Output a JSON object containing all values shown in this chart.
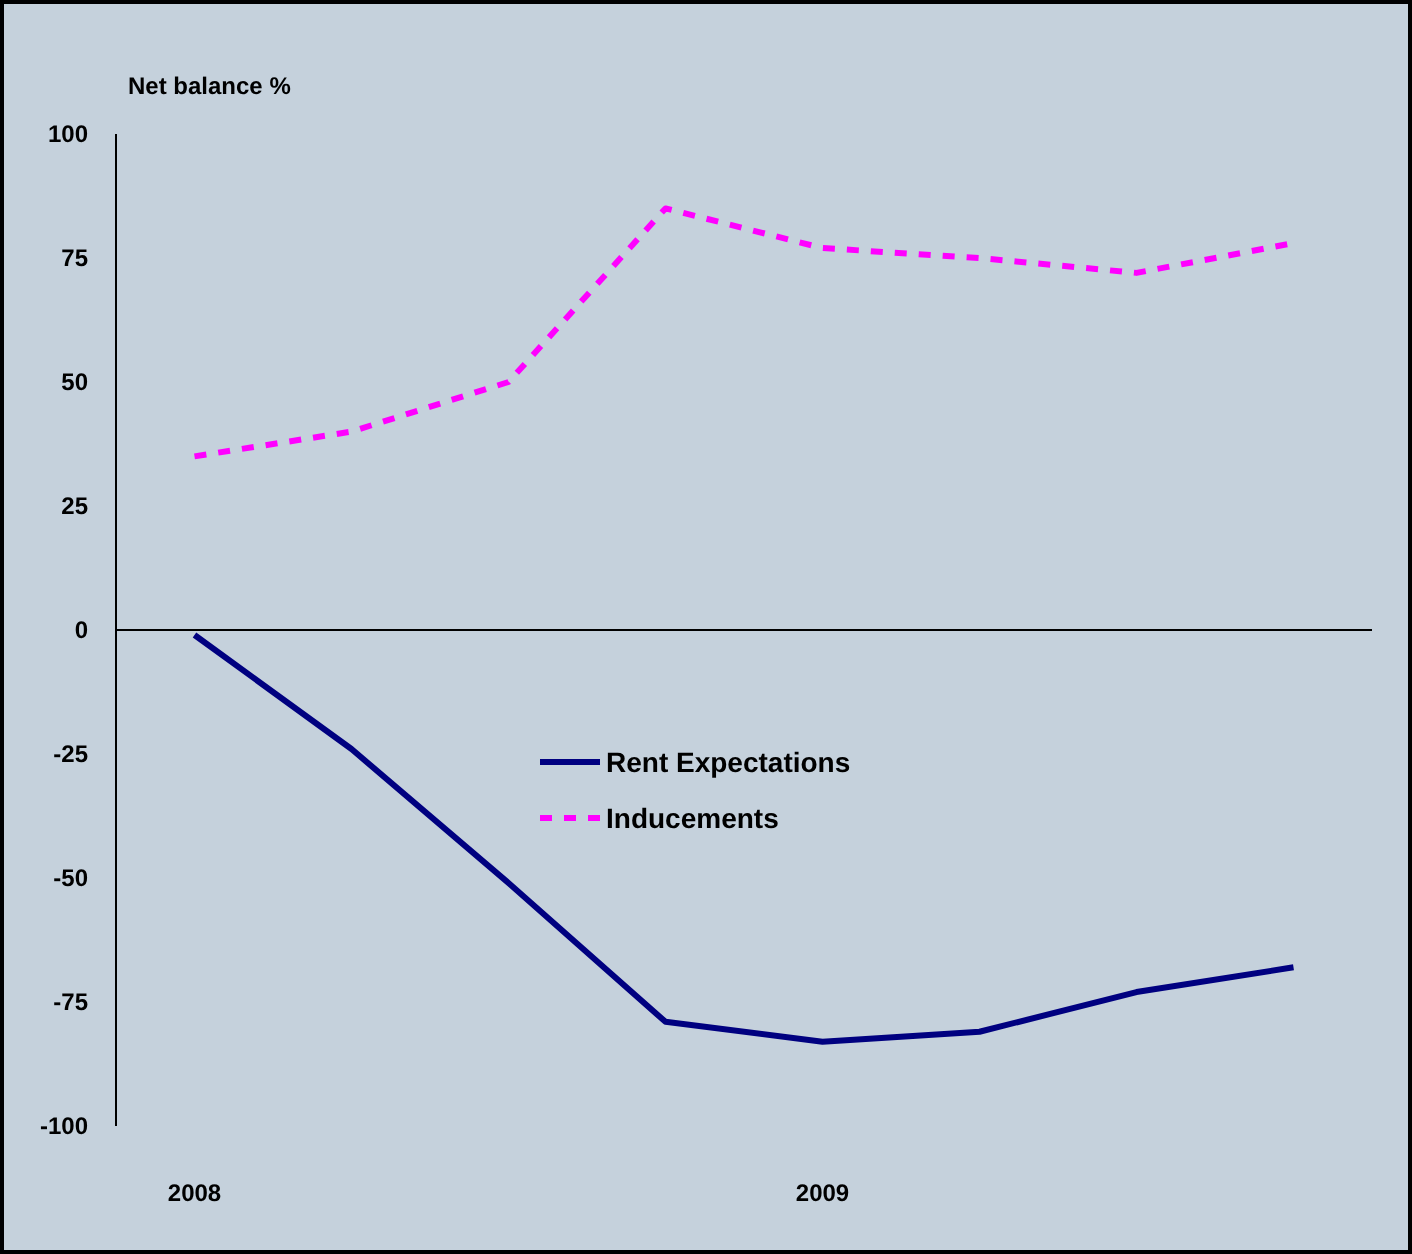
{
  "chart_data": {
    "type": "line",
    "ylabel": "Net balance %",
    "categories": [
      "2008",
      null,
      null,
      null,
      "2009",
      null,
      null,
      null
    ],
    "series": [
      {
        "name": "Rent Expectations",
        "color": "#000080",
        "line_style": "solid",
        "values": [
          -1,
          -24,
          -51,
          -79,
          -83,
          -81,
          -73,
          -68
        ]
      },
      {
        "name": "Inducements",
        "color": "#ff00ff",
        "line_style": "dotted",
        "values": [
          35,
          40,
          50,
          85,
          77,
          75,
          72,
          78
        ]
      }
    ],
    "ylim": [
      -100,
      100
    ],
    "yticks": [
      -100,
      -75,
      -50,
      -25,
      0,
      25,
      50,
      75,
      100
    ],
    "grid": false,
    "ref_lines": [
      {
        "axis": "y",
        "value": 0,
        "color": "#000000"
      }
    ],
    "legend": "center",
    "marker": "none"
  }
}
